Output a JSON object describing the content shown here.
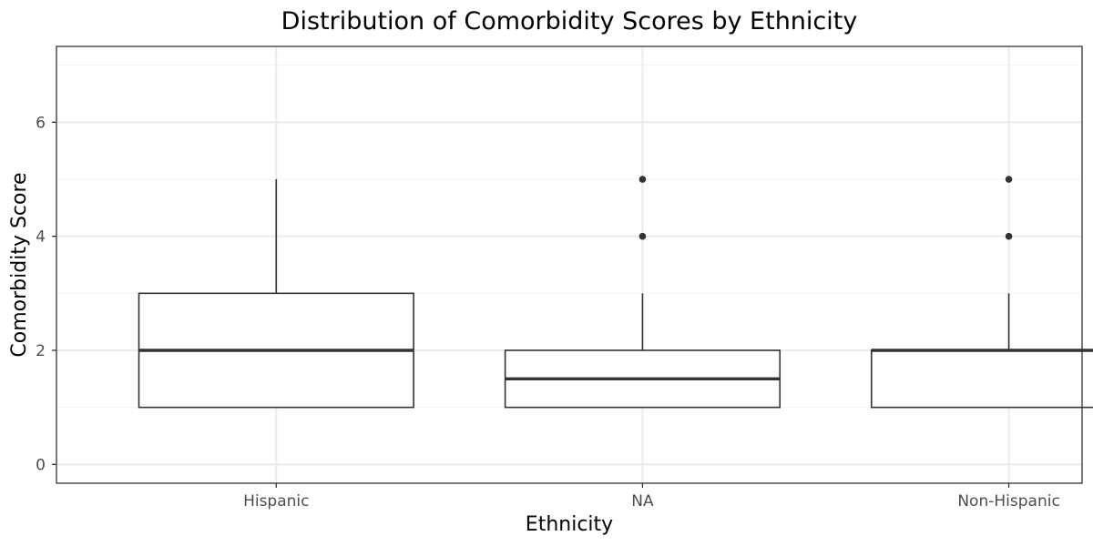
{
  "chart_data": {
    "type": "boxplot",
    "title": "Distribution of Comorbidity Scores by Ethnicity",
    "xlabel": "Ethnicity",
    "ylabel": "Comorbidity Score",
    "ylim": [
      -0.33,
      7.33
    ],
    "y_ticks": [
      0,
      2,
      4,
      6
    ],
    "y_tick_labels": [
      "0",
      "2",
      "4",
      "6"
    ],
    "grid": true,
    "legend": "none",
    "categories": [
      "Hispanic",
      "NA",
      "Non-Hispanic"
    ],
    "boxes": [
      {
        "category": "Hispanic",
        "lower_whisker": 1,
        "q1": 1,
        "median": 2,
        "q3": 3,
        "upper_whisker": 5,
        "outliers": []
      },
      {
        "category": "NA",
        "lower_whisker": 1,
        "q1": 1,
        "median": 1.5,
        "q3": 2,
        "upper_whisker": 3,
        "outliers": [
          4,
          5
        ]
      },
      {
        "category": "Non-Hispanic",
        "lower_whisker": 1,
        "q1": 1,
        "median": 2,
        "q3": 2,
        "upper_whisker": 3,
        "outliers": [
          4,
          5
        ]
      }
    ],
    "colors": {
      "box_stroke": "#333333",
      "box_fill": "#ffffff",
      "grid_major": "#ebebeb",
      "grid_minor": "#f5f5f5",
      "panel_border": "#333333",
      "tick_label": "#4d4d4d"
    }
  }
}
